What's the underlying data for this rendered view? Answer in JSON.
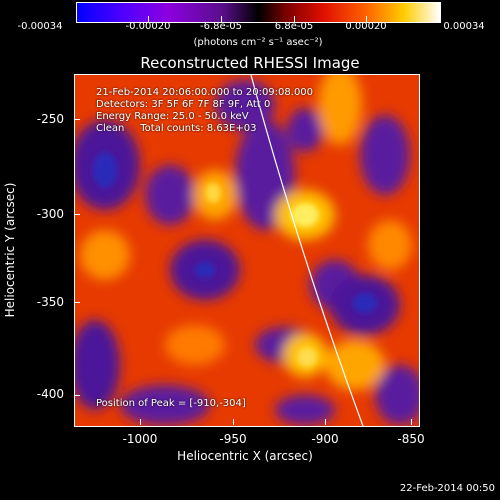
{
  "colorbar": {
    "ticks": [
      "-0.00034",
      "-0.00020",
      "-6.8e-05",
      "6.8e-05",
      "0.00020",
      "0.00034"
    ],
    "unit": "(photons cm⁻² s⁻¹ asec⁻²)"
  },
  "title": "Reconstructed RHESSI Image",
  "info": {
    "line1": "21-Feb-2014 20:06:00.000 to 20:09:08.000",
    "line2": "Detectors: 3F 5F 6F 7F 8F 9F, Att 0",
    "line3": "Energy Range: 25.0 - 50.0 keV",
    "line4": "Clean     Total counts: 8.63E+03",
    "peak": "Position of Peak = [-910,-304]"
  },
  "axes": {
    "xlabel": "Heliocentric X (arcsec)",
    "ylabel": "Heliocentric Y (arcsec)",
    "xticks": [
      "-1000",
      "-950",
      "-900",
      "-850"
    ],
    "yticks": [
      "-250",
      "-300",
      "-350",
      "-400"
    ]
  },
  "footer": "22-Feb-2014 00:50",
  "colors": {
    "background": "#000000",
    "limb": "#ffffff"
  }
}
